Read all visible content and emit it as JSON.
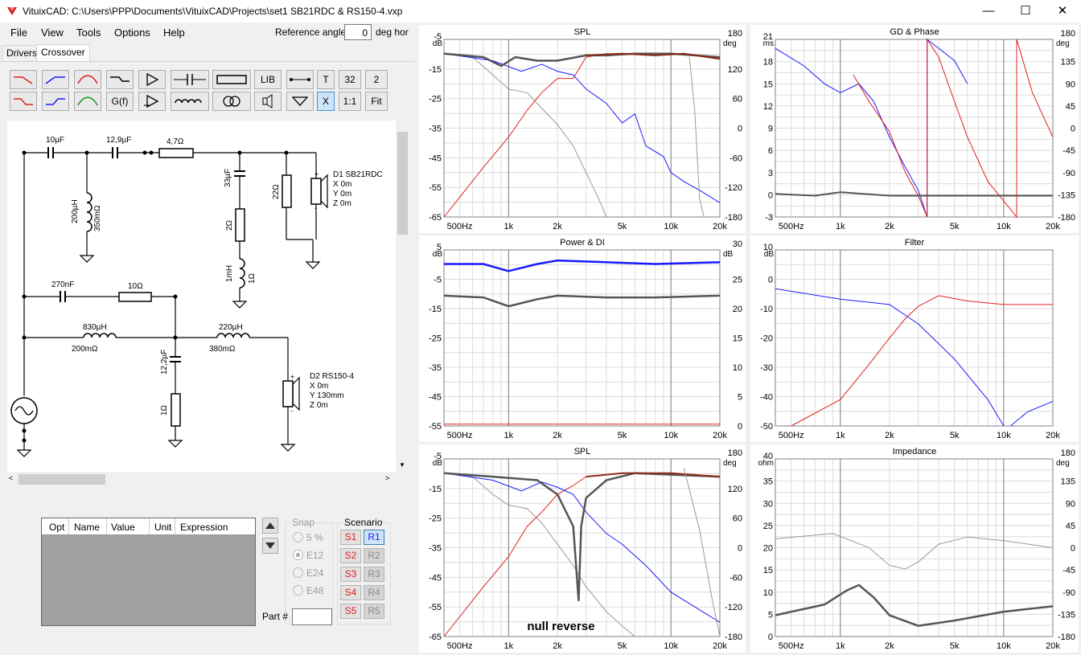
{
  "window": {
    "title": "VituixCAD: C:\\Users\\PPP\\Documents\\VituixCAD\\Projects\\set1 SB21RDC & RS150-4.vxp",
    "minimize": "—",
    "maximize": "☐",
    "close": "✕"
  },
  "menu": [
    "File",
    "View",
    "Tools",
    "Options",
    "Help"
  ],
  "reference": {
    "label": "Reference angle",
    "value": "0",
    "unit": "deg hor"
  },
  "tabs": [
    "Drivers",
    "Crossover"
  ],
  "toolbar": {
    "lib": "LIB",
    "t": "T",
    "n32": "32",
    "n2": "2",
    "gf": "G(f)",
    "x": "X",
    "one_to_one": "1:1",
    "fit": "Fit"
  },
  "schematic": {
    "c1": "10µF",
    "c2": "12,9µF",
    "r1": "4,7Ω",
    "l1": "200µH",
    "l1r": "350mΩ",
    "c3": "33µF",
    "r2": "2Ω",
    "l2": "1mH",
    "l2r": "1Ω",
    "r3": "22Ω",
    "d1": {
      "name": "D1 SB21RDC",
      "x": "X 0m",
      "y": "Y 0m",
      "z": "Z 0m"
    },
    "c4": "270nF",
    "r4": "10Ω",
    "l3": "830µH",
    "l3r": "200mΩ",
    "l4": "220µH",
    "l4r": "380mΩ",
    "c5": "12,2µF",
    "r5": "1Ω",
    "d2": {
      "name": "D2 RS150-4",
      "x": "X 0m",
      "y": "Y 130mm",
      "z": "Z 0m"
    },
    "plus": "+",
    "minus": "-"
  },
  "parts_table": {
    "columns": [
      "Opt",
      "Name",
      "Value",
      "Unit",
      "Expression"
    ]
  },
  "snap": {
    "label": "Snap",
    "options": [
      "5 %",
      "E12",
      "E24",
      "E48"
    ],
    "selected": "E12"
  },
  "scenario": {
    "label": "Scenario",
    "s": [
      "S1",
      "S2",
      "S3",
      "S4",
      "S5"
    ],
    "r": [
      "R1",
      "R2",
      "R3",
      "R4",
      "R5"
    ]
  },
  "part_label": "Part #",
  "x_ticks": [
    "500Hz",
    "1k",
    "2k",
    "5k",
    "10k",
    "20k"
  ],
  "charts": {
    "spl1": {
      "title": "SPL",
      "yunit": "dB",
      "y2unit": "deg",
      "yticks": [
        "-5",
        "-15",
        "-25",
        "-35",
        "-45",
        "-55",
        "-65"
      ],
      "y2ticks": [
        "180",
        "120",
        "60",
        "0",
        "-60",
        "-120",
        "-180"
      ]
    },
    "gd": {
      "title": "GD & Phase",
      "yunit": "ms",
      "y2unit": "deg",
      "yticks": [
        "21",
        "18",
        "15",
        "12",
        "9",
        "6",
        "3",
        "0",
        "-3"
      ],
      "y2ticks": [
        "180",
        "135",
        "90",
        "45",
        "0",
        "-45",
        "-90",
        "-135",
        "-180"
      ]
    },
    "power": {
      "title": "Power & DI",
      "yunit": "dB",
      "y2unit": "dB",
      "yticks": [
        "5",
        "-5",
        "-15",
        "-25",
        "-35",
        "-45",
        "-55"
      ],
      "y2ticks": [
        "30",
        "25",
        "20",
        "15",
        "10",
        "5",
        "0"
      ]
    },
    "filter": {
      "title": "Filter",
      "yunit": "dB",
      "yticks": [
        "10",
        "0",
        "-10",
        "-20",
        "-30",
        "-40",
        "-50"
      ]
    },
    "spl2": {
      "title": "SPL",
      "yunit": "dB",
      "y2unit": "deg",
      "yticks": [
        "-5",
        "-15",
        "-25",
        "-35",
        "-45",
        "-55",
        "-65"
      ],
      "y2ticks": [
        "180",
        "120",
        "60",
        "0",
        "-60",
        "-120",
        "-180"
      ],
      "annotation": "null reverse"
    },
    "imp": {
      "title": "Impedance",
      "yunit": "ohm",
      "y2unit": "deg",
      "yticks": [
        "40",
        "35",
        "30",
        "25",
        "20",
        "15",
        "10",
        "5",
        "0"
      ],
      "y2ticks": [
        "180",
        "135",
        "90",
        "45",
        "0",
        "-45",
        "-90",
        "-135",
        "-180"
      ]
    }
  },
  "colors": {
    "red": "#e02020",
    "blue": "#1a1aff",
    "grey": "#555555",
    "brown": "#8b2a1a",
    "lightgrey": "#999999"
  }
}
